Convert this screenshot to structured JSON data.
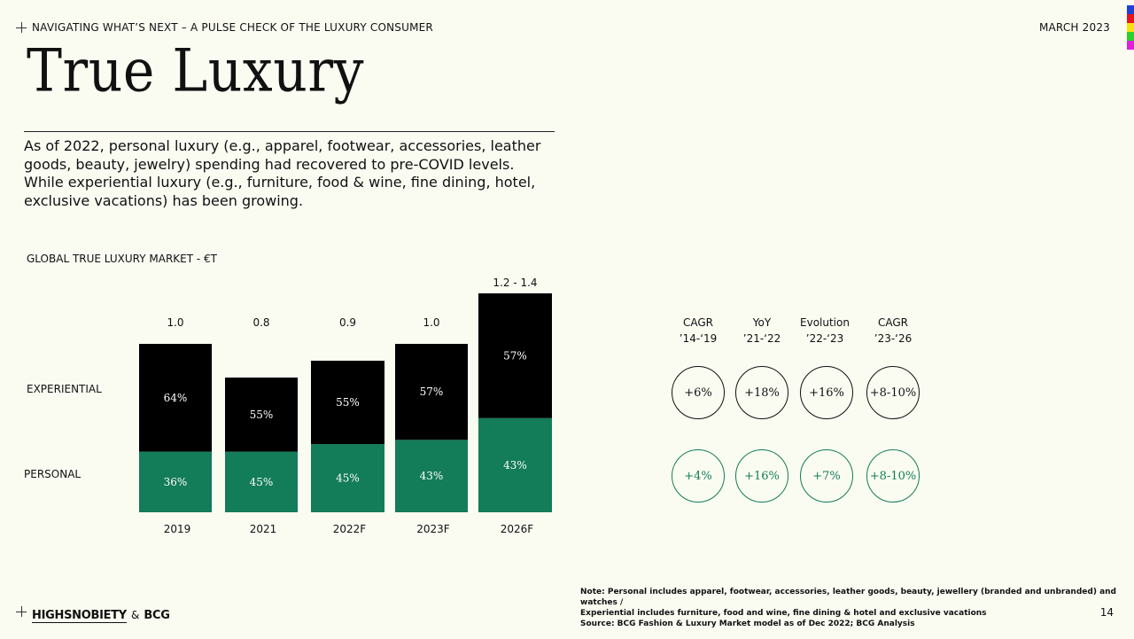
{
  "header": {
    "breadcrumb": "NAVIGATING WHAT’S NEXT – A PULSE CHECK OF THE LUXURY CONSUMER",
    "date": "MARCH 2023"
  },
  "page_title": "True Luxury",
  "intro": "As of 2022, personal luxury (e.g., apparel, footwear, accessories, leather goods, beauty, jewelry) spending had recovered to pre-COVID levels. While experiential luxury (e.g., furniture, food & wine, fine dining, hotel, exclusive vacations) has been growing.",
  "colors": {
    "experiential": "#000000",
    "personal": "#137c58",
    "background": "#fafcf2",
    "strip": [
      "#1f3fd8",
      "#e8141c",
      "#f5e20a",
      "#2ad12a",
      "#e01ee0"
    ]
  },
  "chart_data": {
    "type": "bar",
    "stacked": true,
    "title": "GLOBAL TRUE LUXURY MARKET - €T",
    "categories": [
      "2019",
      "2021",
      "2022F",
      "2023F",
      "2026F"
    ],
    "totals": [
      1.0,
      0.8,
      0.9,
      1.0,
      1.3
    ],
    "total_labels": [
      "1.0",
      "0.8",
      "0.9",
      "1.0",
      "1.2 - 1.4"
    ],
    "series": [
      {
        "name": "EXPERIENTIAL",
        "shares": [
          64,
          55,
          55,
          57,
          57
        ],
        "labels": [
          "64%",
          "55%",
          "55%",
          "57%",
          "57%"
        ],
        "color": "#000000"
      },
      {
        "name": "PERSONAL",
        "shares": [
          36,
          45,
          45,
          43,
          43
        ],
        "labels": [
          "36%",
          "45%",
          "45%",
          "43%",
          "43%"
        ],
        "color": "#137c58"
      }
    ],
    "grid": false
  },
  "growth_table": {
    "columns": [
      {
        "line1": "CAGR",
        "line2": "’14-‘19"
      },
      {
        "line1": "YoY",
        "line2": "’21-‘22"
      },
      {
        "line1": "Evolution",
        "line2": "’22-‘23"
      },
      {
        "line1": "CAGR",
        "line2": "’23-‘26"
      }
    ],
    "experiential": [
      "+6%",
      "+18%",
      "+16%",
      "+8-10%"
    ],
    "personal": [
      "+4%",
      "+16%",
      "+7%",
      "+8-10%"
    ]
  },
  "footer": {
    "note_line1": "Note: Personal includes apparel, footwear, accessories, leather goods, beauty, jewellery (branded and unbranded) and watches /",
    "note_line2": "Experiential includes furniture, food and wine, fine dining & hotel and exclusive vacations",
    "source": "Source: BCG Fashion & Luxury Market model as of Dec 2022; BCG Analysis",
    "brand_left": "HIGHSNOBIETY",
    "brand_amp": "&",
    "brand_right": "BCG",
    "page_number": "14"
  }
}
